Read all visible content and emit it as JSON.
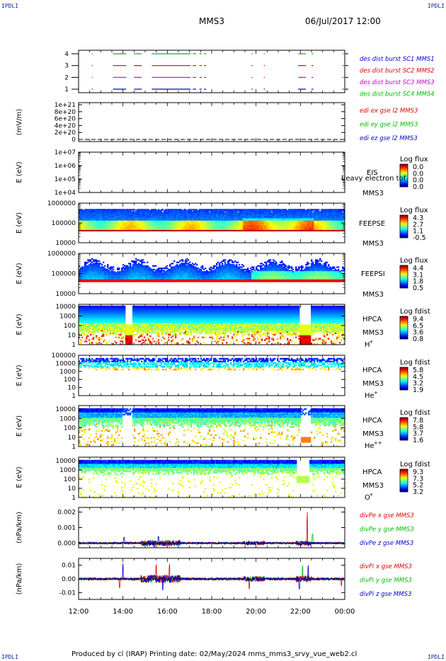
{
  "header": {
    "mission": "MMS3",
    "datetime": "06/Jul/2017 12:00",
    "corner_label": "IPDLI"
  },
  "footer": {
    "text": "Produced by cl (IRAP)   Printing date: 02/May/2024   mms_mms3_srvy_vue_web2.cl"
  },
  "colors": {
    "sc1": "#0000cc",
    "sc2": "#dd0000",
    "sc3": "#cc00cc",
    "sc4": "#00bb00",
    "axis": "#000000"
  },
  "chart_data": [
    {
      "type": "line",
      "title": "burst availability",
      "y_ticks": [
        "1",
        "2",
        "3",
        "4"
      ],
      "series": [
        {
          "name": "des dist burst SC1 MMS1",
          "y": 1,
          "color": "#0000cc"
        },
        {
          "name": "des dist burst SC2 MMS2",
          "y": 3,
          "color": "#dd0000"
        },
        {
          "name": "des dist burst SC3 MMS3",
          "y": 2,
          "color": "#cc00cc"
        },
        {
          "name": "des dist burst SC4 MMS4",
          "y": 4,
          "color": "#00bb00"
        }
      ],
      "burst_intervals_hours": [
        [
          12.6,
          12.62
        ],
        [
          13.55,
          14.15
        ],
        [
          14.5,
          14.85
        ],
        [
          15.3,
          17.05
        ],
        [
          17.15,
          17.3
        ],
        [
          17.45,
          17.55
        ],
        [
          17.65,
          17.75
        ],
        [
          19.8,
          19.85
        ],
        [
          20.35,
          20.4
        ],
        [
          21.9,
          22.25
        ],
        [
          22.5,
          22.58
        ],
        [
          23.9,
          23.95
        ]
      ]
    },
    {
      "type": "line",
      "ylabel": "(mV/m)",
      "y_ticks": [
        "1e+21",
        "8e+20",
        "6e+20",
        "4e+20",
        "2e+20",
        "0"
      ],
      "ylim": [
        0,
        1e+21
      ],
      "series": [
        {
          "name": "edi ex gse l2 MMS3",
          "color": "#dd0000"
        },
        {
          "name": "edi ey gse l2 MMS3",
          "color": "#00bb00"
        },
        {
          "name": "edi ez gse l2 MMS3",
          "color": "#0000cc"
        }
      ]
    },
    {
      "type": "heatmap",
      "ylabel": "E (eV)",
      "y_ticks": [
        "1e+07",
        "1e+06",
        "1e+05",
        "1e+04"
      ],
      "instrument": "EIS",
      "mission": "MMS3",
      "overlay_text": "heavy electron tof",
      "cbar_title": "Log flux",
      "cbar_ticks": [
        "0.0",
        "0.0",
        "0.0",
        "0.0"
      ]
    },
    {
      "type": "heatmap",
      "ylabel": "E (eV)",
      "y_ticks": [
        "1000000",
        "100000",
        "10000"
      ],
      "instrument": "FEEPSE",
      "mission": "MMS3",
      "cbar_title": "Log flux",
      "cbar_ticks": [
        "4.3",
        "2.7",
        "1.1",
        "-0.5"
      ]
    },
    {
      "type": "heatmap",
      "ylabel": "E (eV)",
      "y_ticks": [
        "1000000",
        "100000",
        "10000"
      ],
      "instrument": "FEEPSI",
      "mission": "MMS3",
      "cbar_title": "Log flux",
      "cbar_ticks": [
        "4.4",
        "3.1",
        "1.8",
        "0.5"
      ]
    },
    {
      "type": "heatmap",
      "ylabel": "E (eV)",
      "y_ticks": [
        "10000",
        "1000",
        "100",
        "10",
        "1"
      ],
      "instrument": "HPCA",
      "mission": "MMS3",
      "species": "H",
      "species_sup": "+",
      "cbar_title": "Log fdist",
      "cbar_ticks": [
        "9.4",
        "6.5",
        "3.6",
        "0.8"
      ]
    },
    {
      "type": "heatmap",
      "ylabel": "E (eV)",
      "y_ticks": [
        "100000",
        "10000",
        "1000",
        "100",
        "10",
        "1"
      ],
      "instrument": "HPCA",
      "mission": "MMS3",
      "species": "He",
      "species_sup": "+",
      "cbar_title": "Log fdist",
      "cbar_ticks": [
        "5.8",
        "4.5",
        "3.2",
        "1.9"
      ]
    },
    {
      "type": "heatmap",
      "ylabel": "E (eV)",
      "y_ticks": [
        "10000",
        "1000",
        "100",
        "10",
        "1"
      ],
      "instrument": "HPCA",
      "mission": "MMS3",
      "species": "He",
      "species_sup": "++",
      "cbar_title": "Log fdist",
      "cbar_ticks": [
        "7.8",
        "5.8",
        "3.7",
        "1.6"
      ]
    },
    {
      "type": "heatmap",
      "ylabel": "E (eV)",
      "y_ticks": [
        "10000",
        "1000",
        "100",
        "10",
        "1"
      ],
      "instrument": "HPCA",
      "mission": "MMS3",
      "species": "O",
      "species_sup": "+",
      "cbar_title": "Log fdist",
      "cbar_ticks": [
        "9.3",
        "7.3",
        "5.2",
        "3.2"
      ]
    },
    {
      "type": "line",
      "ylabel": "(nPa/km)",
      "y_ticks": [
        "0.002",
        "0.001",
        "0.000"
      ],
      "ylim": [
        -0.0003,
        0.0023
      ],
      "series": [
        {
          "name": "divPe x gse MMS3",
          "color": "#dd0000"
        },
        {
          "name": "divPe y gse MMS3",
          "color": "#00bb00"
        },
        {
          "name": "divPe z gse MMS3",
          "color": "#0000cc"
        }
      ]
    },
    {
      "type": "line",
      "ylabel": "(nPa/km)",
      "y_ticks": [
        "0.01",
        "0.00",
        "-0.01"
      ],
      "ylim": [
        -0.015,
        0.015
      ],
      "series": [
        {
          "name": "divPi x gse MMS3",
          "color": "#dd0000"
        },
        {
          "name": "divPi y gse MMS3",
          "color": "#00bb00"
        },
        {
          "name": "divPi z gse MMS3",
          "color": "#0000cc"
        }
      ]
    }
  ],
  "x_axis": {
    "ticks": [
      "12:00",
      "14:00",
      "16:00",
      "18:00",
      "20:00",
      "22:00",
      "00:00"
    ],
    "range_hours": [
      12,
      24
    ]
  }
}
